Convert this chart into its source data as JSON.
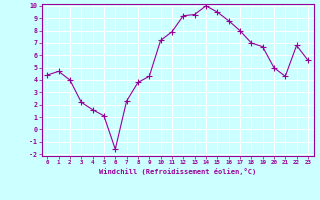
{
  "x": [
    0,
    1,
    2,
    3,
    4,
    5,
    6,
    7,
    8,
    9,
    10,
    11,
    12,
    13,
    14,
    15,
    16,
    17,
    18,
    19,
    20,
    21,
    22,
    23
  ],
  "y": [
    4.4,
    4.7,
    4.0,
    2.2,
    1.6,
    1.1,
    -1.6,
    2.3,
    3.8,
    4.3,
    7.2,
    7.9,
    9.2,
    9.3,
    10.0,
    9.5,
    8.8,
    8.0,
    7.0,
    6.7,
    5.0,
    4.3,
    6.8,
    5.6
  ],
  "line_color": "#990099",
  "marker": "+",
  "marker_size": 4,
  "bg_color": "#ccffff",
  "grid_color": "#aadddd",
  "xlabel": "Windchill (Refroidissement éolien,°C)",
  "xlabel_color": "#990099",
  "tick_color": "#990099",
  "ylim": [
    -2,
    10
  ],
  "xlim": [
    -0.5,
    23.5
  ],
  "yticks": [
    -2,
    -1,
    0,
    1,
    2,
    3,
    4,
    5,
    6,
    7,
    8,
    9,
    10
  ],
  "xticks": [
    0,
    1,
    2,
    3,
    4,
    5,
    6,
    7,
    8,
    9,
    10,
    11,
    12,
    13,
    14,
    15,
    16,
    17,
    18,
    19,
    20,
    21,
    22,
    23
  ]
}
